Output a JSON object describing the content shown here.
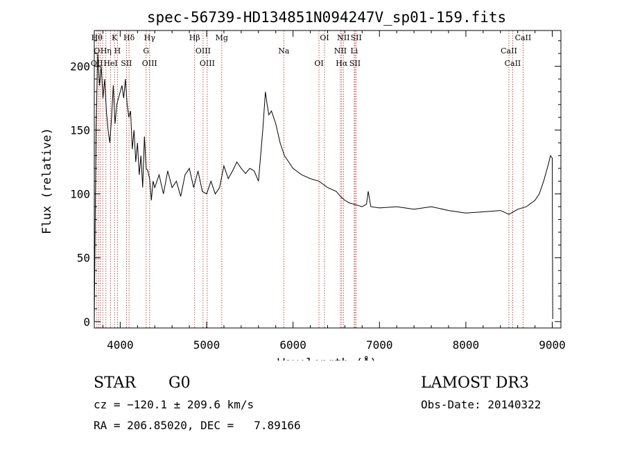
{
  "chart_data": {
    "type": "line",
    "title": "spec-56739-HD134851N094247V_sp01-159.fits",
    "xlabel": "Wavelength (Å)",
    "ylabel": "Flux (relative)",
    "xlim": [
      3700,
      9100
    ],
    "ylim": [
      -5,
      228
    ],
    "xticks": [
      4000,
      5000,
      6000,
      7000,
      8000,
      9000
    ],
    "yticks": [
      0,
      50,
      100,
      150,
      200
    ],
    "grid": false,
    "series": [
      {
        "name": "flux",
        "x": [
          3700,
          3720,
          3740,
          3760,
          3780,
          3800,
          3820,
          3840,
          3860,
          3880,
          3900,
          3920,
          3940,
          3960,
          3980,
          4000,
          4020,
          4040,
          4060,
          4080,
          4100,
          4120,
          4140,
          4160,
          4180,
          4200,
          4220,
          4240,
          4260,
          4280,
          4300,
          4320,
          4340,
          4360,
          4380,
          4400,
          4450,
          4500,
          4550,
          4600,
          4650,
          4700,
          4750,
          4800,
          4850,
          4900,
          4950,
          5000,
          5050,
          5100,
          5150,
          5200,
          5250,
          5300,
          5350,
          5400,
          5450,
          5500,
          5550,
          5600,
          5650,
          5680,
          5700,
          5720,
          5750,
          5800,
          5850,
          5900,
          5950,
          6000,
          6100,
          6200,
          6300,
          6400,
          6500,
          6550,
          6600,
          6650,
          6700,
          6750,
          6800,
          6850,
          6870,
          6900,
          7000,
          7200,
          7400,
          7600,
          7800,
          8000,
          8200,
          8400,
          8500,
          8600,
          8700,
          8800,
          8850,
          8900,
          8950,
          8980,
          9000,
          9005
        ],
        "values": [
          0,
          150,
          210,
          185,
          200,
          175,
          190,
          165,
          150,
          140,
          160,
          185,
          155,
          170,
          175,
          180,
          185,
          175,
          190,
          170,
          160,
          165,
          135,
          150,
          125,
          140,
          115,
          130,
          105,
          145,
          120,
          118,
          112,
          95,
          110,
          105,
          115,
          100,
          118,
          105,
          110,
          98,
          115,
          120,
          105,
          118,
          102,
          100,
          110,
          100,
          105,
          122,
          112,
          118,
          125,
          120,
          116,
          120,
          118,
          110,
          150,
          180,
          170,
          162,
          165,
          155,
          140,
          130,
          125,
          120,
          115,
          112,
          110,
          105,
          102,
          98,
          95,
          93,
          92,
          91,
          90,
          92,
          102,
          90,
          89,
          90,
          88,
          90,
          87,
          85,
          86,
          87,
          84,
          88,
          90,
          95,
          100,
          110,
          122,
          130,
          128,
          2
        ]
      }
    ],
    "lines": [
      {
        "w": 3730,
        "labels": [
          "Hθ",
          "O",
          "OII"
        ]
      },
      {
        "w": 3750,
        "labels": []
      },
      {
        "w": 3770,
        "labels": []
      },
      {
        "w": 3798,
        "labels": []
      },
      {
        "w": 3835,
        "labels": [
          "Hη"
        ]
      },
      {
        "w": 3889,
        "labels": [
          "HeI"
        ]
      },
      {
        "w": 3934,
        "labels": [
          "K"
        ]
      },
      {
        "w": 3968,
        "labels": [
          "H"
        ]
      },
      {
        "w": 4072,
        "labels": [
          "SII"
        ]
      },
      {
        "w": 4102,
        "labels": [
          "Hδ"
        ]
      },
      {
        "w": 4300,
        "labels": [
          "G"
        ]
      },
      {
        "w": 4340,
        "labels": [
          "OIII",
          "Hγ"
        ]
      },
      {
        "w": 4861,
        "labels": [
          "Hβ"
        ]
      },
      {
        "w": 4959,
        "labels": [
          "OIII"
        ]
      },
      {
        "w": 5007,
        "labels": [
          "OIII"
        ]
      },
      {
        "w": 5175,
        "labels": [
          "Mg"
        ]
      },
      {
        "w": 5893,
        "labels": [
          "Na"
        ]
      },
      {
        "w": 6300,
        "labels": [
          "OI"
        ]
      },
      {
        "w": 6364,
        "labels": [
          "OI"
        ]
      },
      {
        "w": 6548,
        "labels": [
          "NII"
        ]
      },
      {
        "w": 6563,
        "labels": [
          "Hα"
        ]
      },
      {
        "w": 6583,
        "labels": [
          "NII"
        ]
      },
      {
        "w": 6708,
        "labels": [
          "Li"
        ]
      },
      {
        "w": 6717,
        "labels": [
          "SII"
        ]
      },
      {
        "w": 6731,
        "labels": [
          "SII"
        ]
      },
      {
        "w": 8498,
        "labels": [
          "CaII"
        ]
      },
      {
        "w": 8542,
        "labels": [
          "CaII"
        ]
      },
      {
        "w": 8662,
        "labels": [
          "CaII"
        ]
      }
    ]
  },
  "info": {
    "object_class": "STAR",
    "subclass": "G0",
    "survey": "LAMOST DR3",
    "redshift": "cz = −120.1 ± 209.6 km/s",
    "obs_date": "Obs-Date: 20140322",
    "coords": "RA = 206.85020, DEC =   7.89166"
  },
  "colors": {
    "line_marker": "#b22222",
    "spectrum": "#000000"
  }
}
